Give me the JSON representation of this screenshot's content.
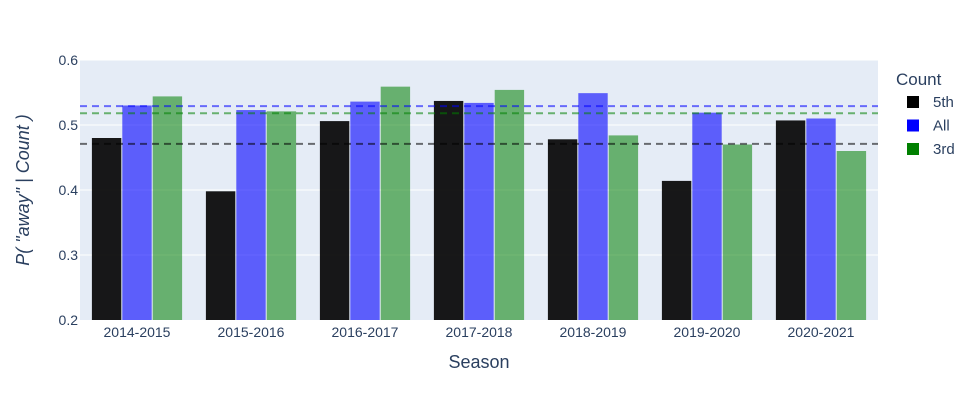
{
  "chart_data": {
    "type": "bar",
    "categories": [
      "2014-2015",
      "2015-2016",
      "2016-2017",
      "2017-2018",
      "2018-2019",
      "2019-2020",
      "2020-2021"
    ],
    "series": [
      {
        "name": "5th",
        "color": "#000000",
        "values": [
          0.48,
          0.398,
          0.506,
          0.537,
          0.478,
          0.414,
          0.507
        ]
      },
      {
        "name": "All",
        "color": "#0000ff",
        "values": [
          0.53,
          0.523,
          0.536,
          0.534,
          0.549,
          0.519,
          0.51
        ]
      },
      {
        "name": "3rd",
        "color": "#008000",
        "values": [
          0.544,
          0.521,
          0.559,
          0.554,
          0.484,
          0.47,
          0.46
        ]
      }
    ],
    "reference_lines": [
      {
        "series": "All",
        "color": "#0000ff",
        "value": 0.529
      },
      {
        "series": "3rd",
        "color": "#008000",
        "value": 0.518
      },
      {
        "series": "5th",
        "color": "#000000",
        "value": 0.471
      }
    ],
    "xlabel": "Season",
    "ylabel": "P( \"away\" | Count )",
    "ylim": [
      0.2,
      0.6
    ],
    "yticks": [
      "0.2",
      "0.3",
      "0.4",
      "0.5",
      "0.6"
    ],
    "legend_title": "Count",
    "legend_position": "right",
    "grid": true
  }
}
